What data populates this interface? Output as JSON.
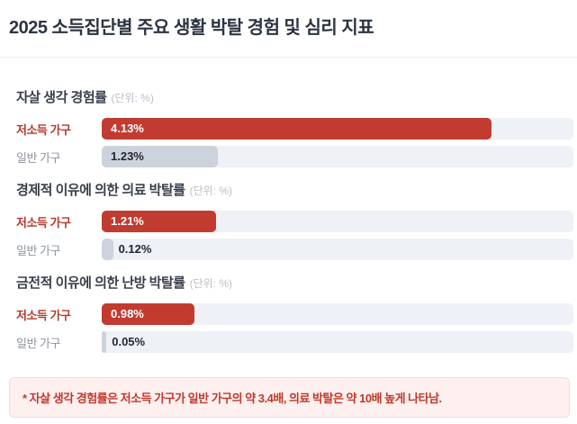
{
  "page": {
    "title": "2025 소득집단별 주요 생활 박탈 경험 및 심리 지표",
    "note": "* 자살 생각 경험률은 저소득 가구가 일반 가구의 약 3.4배, 의료 박탈은 약 10배 높게 나타남."
  },
  "colors": {
    "title": "#2c3441",
    "header": "#39404c",
    "unit": "#b9bfc7",
    "divider": "#edeff1",
    "bar_red": "#c23b30",
    "label_red": "#b5382c",
    "bar_gray": "#cdd3dc",
    "label_gray": "#8e95a0",
    "track": "#eef1f6",
    "value_on_red": "#ffffff",
    "value_on_gray": "#23272e",
    "note_bg": "#fdf0ef",
    "note_border": "#f5dcd9",
    "note_text": "#c0392b"
  },
  "chart_data": [
    {
      "type": "bar",
      "orientation": "horizontal",
      "title": "자살 생각 경험률",
      "unit_label": "(단위: %)",
      "categories": [
        "저소득 가구",
        "일반 가구"
      ],
      "values": [
        4.13,
        1.23
      ],
      "value_labels": [
        "4.13%",
        "1.23%"
      ],
      "series_styles": [
        "red",
        "gray"
      ],
      "xlim": [
        0,
        5
      ],
      "grid": false,
      "legend": "none"
    },
    {
      "type": "bar",
      "orientation": "horizontal",
      "title": "경제적 이유에 의한 의료 박탈률",
      "unit_label": "(단위: %)",
      "categories": [
        "저소득 가구",
        "일반 가구"
      ],
      "values": [
        1.21,
        0.12
      ],
      "value_labels": [
        "1.21%",
        "0.12%"
      ],
      "series_styles": [
        "red",
        "gray"
      ],
      "xlim": [
        0,
        5
      ],
      "grid": false,
      "legend": "none"
    },
    {
      "type": "bar",
      "orientation": "horizontal",
      "title": "금전적 이유에 의한 난방 박탈률",
      "unit_label": "(단위: %)",
      "categories": [
        "저소득 가구",
        "일반 가구"
      ],
      "values": [
        0.98,
        0.05
      ],
      "value_labels": [
        "0.98%",
        "0.05%"
      ],
      "series_styles": [
        "red",
        "gray"
      ],
      "xlim": [
        0,
        5
      ],
      "grid": false,
      "legend": "none"
    }
  ]
}
